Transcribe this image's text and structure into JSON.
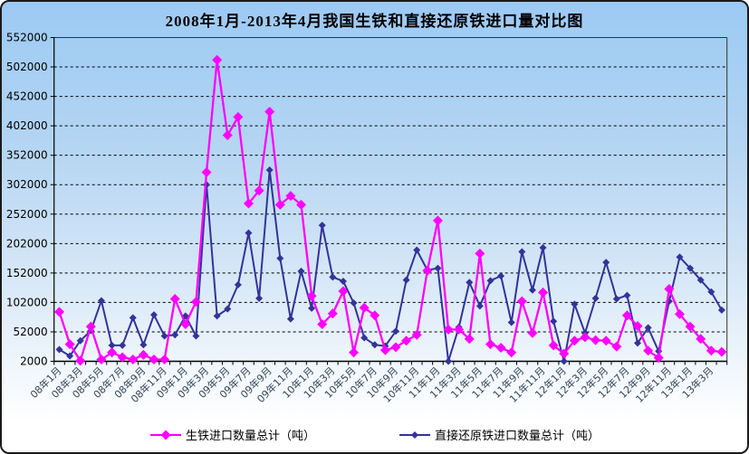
{
  "title": "2008年1月-2013年4月我国生铁和直接还原铁进口量对比图",
  "legend": {
    "pig_iron_label": "生铁进口数量总计（吨）",
    "dri_label": "直接还原铁进口数量总计（吨）"
  },
  "colors": {
    "pig_iron": "#ff00ff",
    "dri": "#333399",
    "grid": "#000000",
    "axis": "#333333",
    "x_label": "#334455",
    "y_label": "#000000"
  },
  "chart_data": {
    "type": "line",
    "title": "2008年1月-2013年4月我国生铁和直接还原铁进口量对比图",
    "x": [
      "08年1月",
      "08年2月",
      "08年3月",
      "08年4月",
      "08年5月",
      "08年6月",
      "08年7月",
      "08年8月",
      "08年9月",
      "08年10月",
      "08年11月",
      "08年12月",
      "09年1月",
      "09年2月",
      "09年3月",
      "09年4月",
      "09年5月",
      "09年6月",
      "09年7月",
      "09年8月",
      "09年9月",
      "09年10月",
      "09年11月",
      "09年12月",
      "10年1月",
      "10年2月",
      "10年3月",
      "10年4月",
      "10年5月",
      "10年6月",
      "10年7月",
      "10年8月",
      "10年9月",
      "10年10月",
      "10年11月",
      "10年12月",
      "11年1月",
      "11年2月",
      "11年3月",
      "11年4月",
      "11年5月",
      "11年6月",
      "11年7月",
      "11年8月",
      "11年9月",
      "11年10月",
      "11年11月",
      "11年12月",
      "12年1月",
      "12年2月",
      "12年3月",
      "12年4月",
      "12年5月",
      "12年6月",
      "12年7月",
      "12年8月",
      "12年9月",
      "12年10月",
      "12年11月",
      "12年12月",
      "13年1月",
      "13年2月",
      "13年3月",
      "13年4月"
    ],
    "x_tick_labels_shown": [
      "08年1月",
      "08年3月",
      "08年5月",
      "08年7月",
      "08年9月",
      "08年11月",
      "09年1月",
      "09年3月",
      "09年5月",
      "09年7月",
      "09年9月",
      "09年11月",
      "10年1月",
      "10年3月",
      "10年5月",
      "10年7月",
      "10年9月",
      "10年11月",
      "11年1月",
      "11年3月",
      "11年5月",
      "11年7月",
      "11年9月",
      "11年11月",
      "12年1月",
      "12年3月",
      "12年5月",
      "12年7月",
      "12年9月",
      "12年11月",
      "13年1月",
      "13年3月"
    ],
    "series": [
      {
        "name": "生铁进口数量总计（吨）",
        "color": "#ff00ff",
        "marker": "diamond",
        "values": [
          86000,
          31000,
          3000,
          61000,
          5000,
          17000,
          9000,
          5000,
          13000,
          5000,
          5000,
          108000,
          65000,
          103000,
          323000,
          514000,
          386000,
          417000,
          270000,
          292000,
          426000,
          268000,
          283000,
          268000,
          113000,
          65000,
          83000,
          121000,
          17000,
          93000,
          80000,
          21000,
          26000,
          37000,
          47000,
          156000,
          241000,
          56000,
          56000,
          40000,
          185000,
          31000,
          25000,
          17000,
          104000,
          50000,
          119000,
          29000,
          15000,
          37000,
          43000,
          38000,
          37000,
          27000,
          80000,
          62000,
          20000,
          8000,
          125000,
          82000,
          61000,
          40000,
          20000,
          18000
        ]
      },
      {
        "name": "直接还原铁进口数量总计（吨）",
        "color": "#333399",
        "marker": "diamond",
        "values": [
          22000,
          11000,
          37000,
          54000,
          105000,
          29000,
          29000,
          76000,
          30000,
          81000,
          45000,
          47000,
          79000,
          45000,
          302000,
          79000,
          91000,
          132000,
          220000,
          109000,
          327000,
          177000,
          74000,
          155000,
          92000,
          233000,
          145000,
          138000,
          101000,
          42000,
          30000,
          28000,
          53000,
          140000,
          191000,
          157000,
          160000,
          2000,
          60000,
          136000,
          96000,
          139000,
          147000,
          68000,
          188000,
          123000,
          195000,
          70000,
          2000,
          99000,
          50000,
          109000,
          170000,
          108000,
          114000,
          33000,
          59000,
          19000,
          104000,
          179000,
          160000,
          140000,
          120000,
          89000
        ]
      }
    ],
    "ylim": [
      2000,
      552000
    ],
    "y_tick_step": 50000,
    "y_tick_labels": [
      "2000",
      "52000",
      "102000",
      "152000",
      "202000",
      "252000",
      "302000",
      "352000",
      "402000",
      "452000",
      "502000",
      "552000"
    ],
    "grid": "horizontal-dashed",
    "legend_position": "bottom"
  }
}
